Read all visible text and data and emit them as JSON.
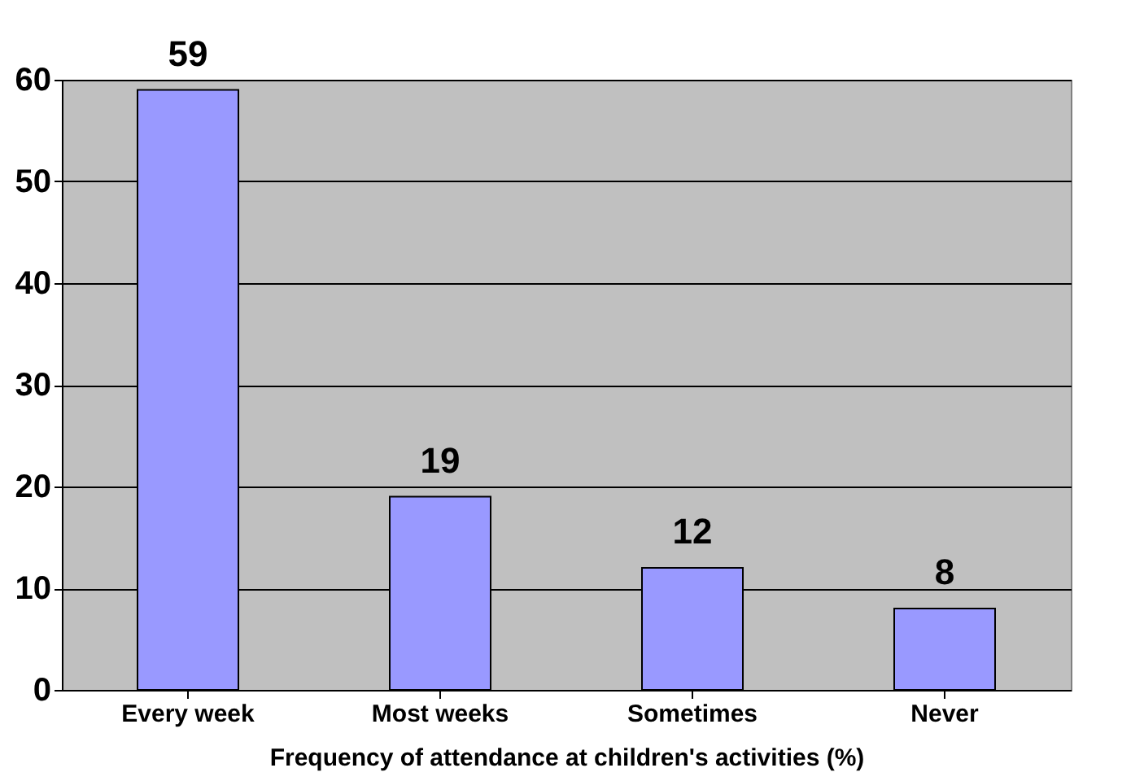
{
  "chart_data": {
    "type": "bar",
    "xlabel": "Frequency of attendance at children's activities (%)",
    "categories": [
      "Every week",
      "Most weeks",
      "Sometimes",
      "Never"
    ],
    "values": [
      59,
      19,
      12,
      8
    ],
    "color": "#9999ff",
    "ylim": [
      0,
      60
    ],
    "yticks": [
      0,
      10,
      20,
      30,
      40,
      50,
      60
    ],
    "grid": "y",
    "data_labels": true
  }
}
